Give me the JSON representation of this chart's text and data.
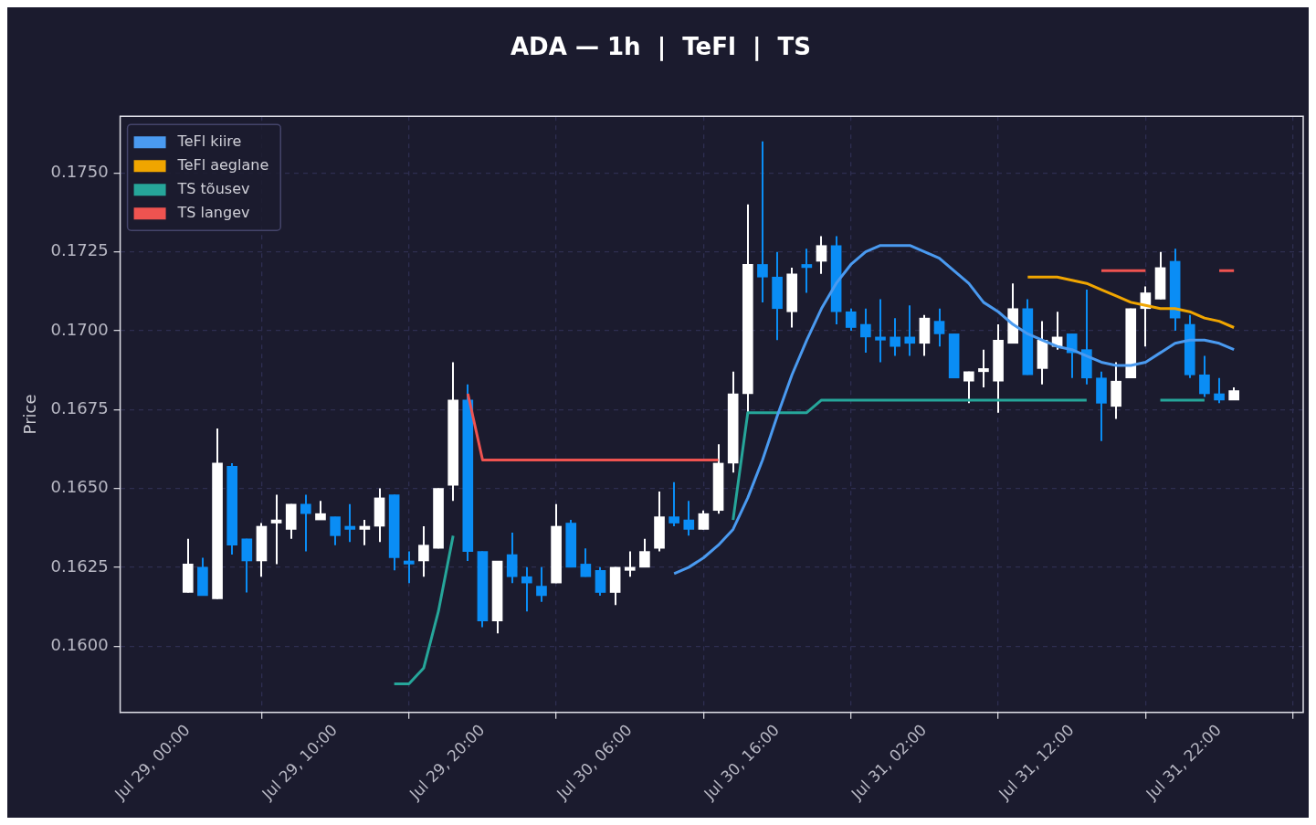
{
  "chart_data": {
    "type": "candlestick",
    "title": "ADA — 1h  |  TeFl  |  TS",
    "ylabel": "Price",
    "x": [
      "--07-29T00:00",
      "--07-29T01:00",
      "--07-29T02:00",
      "--07-29T03:00",
      "--07-29T04:00",
      "--07-29T05:00",
      "--07-29T06:00",
      "--07-29T07:00",
      "--07-29T08:00",
      "--07-29T09:00",
      "--07-29T10:00",
      "--07-29T11:00",
      "--07-29T12:00",
      "--07-29T13:00",
      "--07-29T14:00",
      "--07-29T15:00",
      "--07-29T16:00",
      "--07-29T17:00",
      "--07-29T18:00",
      "--07-29T19:00",
      "--07-29T20:00",
      "--07-29T21:00",
      "--07-29T22:00",
      "--07-29T23:00",
      "--07-30T00:00",
      "--07-30T01:00",
      "--07-30T02:00",
      "--07-30T03:00",
      "--07-30T04:00",
      "--07-30T05:00",
      "--07-30T06:00",
      "--07-30T07:00",
      "--07-30T08:00",
      "--07-30T09:00",
      "--07-30T10:00",
      "--07-30T11:00",
      "--07-30T12:00",
      "--07-30T13:00",
      "--07-30T14:00",
      "--07-30T15:00",
      "--07-30T16:00",
      "--07-30T17:00",
      "--07-30T18:00",
      "--07-30T19:00",
      "--07-30T20:00",
      "--07-30T21:00",
      "--07-30T22:00",
      "--07-30T23:00",
      "--07-31T00:00",
      "--07-31T01:00",
      "--07-31T02:00",
      "--07-31T03:00",
      "--07-31T04:00",
      "--07-31T05:00",
      "--07-31T06:00",
      "--07-31T07:00",
      "--07-31T08:00",
      "--07-31T09:00",
      "--07-31T10:00",
      "--07-31T11:00",
      "--07-31T12:00",
      "--07-31T13:00",
      "--07-31T14:00",
      "--07-31T15:00",
      "--07-31T16:00",
      "--07-31T17:00",
      "--07-31T18:00",
      "--07-31T19:00",
      "--07-31T20:00",
      "--07-31T21:00",
      "--07-31T22:00",
      "--07-31T23:00"
    ],
    "ohlc": [
      [
        0.1617,
        0.1634,
        0.1617,
        0.1626
      ],
      [
        0.1625,
        0.1628,
        0.1616,
        0.1616
      ],
      [
        0.1615,
        0.1669,
        0.1615,
        0.1658
      ],
      [
        0.1657,
        0.1658,
        0.1629,
        0.1632
      ],
      [
        0.1634,
        0.1634,
        0.1617,
        0.1627
      ],
      [
        0.1627,
        0.1639,
        0.1622,
        0.1638
      ],
      [
        0.1639,
        0.1648,
        0.1626,
        0.164
      ],
      [
        0.1637,
        0.1645,
        0.1634,
        0.1645
      ],
      [
        0.1645,
        0.1648,
        0.163,
        0.1642
      ],
      [
        0.164,
        0.1646,
        0.164,
        0.1642
      ],
      [
        0.1641,
        0.1641,
        0.1632,
        0.1635
      ],
      [
        0.1638,
        0.1645,
        0.1633,
        0.1637
      ],
      [
        0.1637,
        0.164,
        0.1632,
        0.1638
      ],
      [
        0.1638,
        0.165,
        0.1633,
        0.1647
      ],
      [
        0.1648,
        0.1648,
        0.1624,
        0.1628
      ],
      [
        0.1627,
        0.163,
        0.162,
        0.1626
      ],
      [
        0.1627,
        0.1638,
        0.1622,
        0.1632
      ],
      [
        0.1631,
        0.165,
        0.1631,
        0.165
      ],
      [
        0.1651,
        0.169,
        0.1646,
        0.1678
      ],
      [
        0.1678,
        0.1683,
        0.1627,
        0.163
      ],
      [
        0.163,
        0.163,
        0.1606,
        0.1608
      ],
      [
        0.1608,
        0.1627,
        0.1604,
        0.1627
      ],
      [
        0.1629,
        0.1636,
        0.162,
        0.1622
      ],
      [
        0.1622,
        0.1625,
        0.1611,
        0.162
      ],
      [
        0.1619,
        0.1625,
        0.1614,
        0.1616
      ],
      [
        0.162,
        0.1645,
        0.162,
        0.1638
      ],
      [
        0.1639,
        0.164,
        0.1625,
        0.1625
      ],
      [
        0.1626,
        0.1631,
        0.1622,
        0.1622
      ],
      [
        0.1624,
        0.1625,
        0.1616,
        0.1617
      ],
      [
        0.1617,
        0.1625,
        0.1613,
        0.1625
      ],
      [
        0.1624,
        0.163,
        0.1622,
        0.1625
      ],
      [
        0.1625,
        0.1634,
        0.1625,
        0.163
      ],
      [
        0.1631,
        0.1649,
        0.163,
        0.1641
      ],
      [
        0.1641,
        0.1652,
        0.1638,
        0.1639
      ],
      [
        0.164,
        0.1646,
        0.1635,
        0.1637
      ],
      [
        0.1637,
        0.1643,
        0.1637,
        0.1642
      ],
      [
        0.1643,
        0.1664,
        0.1642,
        0.1658
      ],
      [
        0.1658,
        0.1687,
        0.1655,
        0.168
      ],
      [
        0.168,
        0.174,
        0.1674,
        0.1721
      ],
      [
        0.1721,
        0.176,
        0.1709,
        0.1717
      ],
      [
        0.1717,
        0.1725,
        0.1697,
        0.1707
      ],
      [
        0.1706,
        0.172,
        0.1701,
        0.1718
      ],
      [
        0.1721,
        0.1726,
        0.1712,
        0.172
      ],
      [
        0.1722,
        0.173,
        0.1718,
        0.1727
      ],
      [
        0.1727,
        0.173,
        0.1702,
        0.1706
      ],
      [
        0.1706,
        0.1707,
        0.17,
        0.1701
      ],
      [
        0.1702,
        0.1707,
        0.1693,
        0.1698
      ],
      [
        0.1698,
        0.171,
        0.169,
        0.1697
      ],
      [
        0.1698,
        0.1704,
        0.1692,
        0.1695
      ],
      [
        0.1698,
        0.1708,
        0.1692,
        0.1696
      ],
      [
        0.1696,
        0.1705,
        0.1692,
        0.1704
      ],
      [
        0.1703,
        0.1707,
        0.1695,
        0.1699
      ],
      [
        0.1699,
        0.1699,
        0.1685,
        0.1685
      ],
      [
        0.1684,
        0.1687,
        0.1677,
        0.1687
      ],
      [
        0.1687,
        0.1694,
        0.1682,
        0.1688
      ],
      [
        0.1684,
        0.1702,
        0.1674,
        0.1697
      ],
      [
        0.1696,
        0.1715,
        0.1696,
        0.1707
      ],
      [
        0.1707,
        0.171,
        0.1686,
        0.1686
      ],
      [
        0.1688,
        0.1703,
        0.1683,
        0.1697
      ],
      [
        0.1695,
        0.1706,
        0.1694,
        0.1698
      ],
      [
        0.1699,
        0.1699,
        0.1685,
        0.1693
      ],
      [
        0.1694,
        0.1713,
        0.1683,
        0.1685
      ],
      [
        0.1685,
        0.1687,
        0.1665,
        0.1677
      ],
      [
        0.1676,
        0.169,
        0.1672,
        0.1684
      ],
      [
        0.1685,
        0.1707,
        0.1685,
        0.1707
      ],
      [
        0.1707,
        0.1714,
        0.1695,
        0.1712
      ],
      [
        0.171,
        0.1725,
        0.171,
        0.172
      ],
      [
        0.1722,
        0.1726,
        0.17,
        0.1704
      ],
      [
        0.1702,
        0.1705,
        0.1685,
        0.1686
      ],
      [
        0.1686,
        0.1692,
        0.1679,
        0.168
      ],
      [
        0.168,
        0.1685,
        0.1677,
        0.1678
      ],
      [
        0.1678,
        0.1682,
        0.1678,
        0.1681
      ]
    ],
    "colors": [
      "#ffffff",
      "#0a8df5",
      "#ffffff",
      "#0a8df5",
      "#0a8df5",
      "#ffffff",
      "#ffffff",
      "#ffffff",
      "#0a8df5",
      "#ffffff",
      "#0a8df5",
      "#0a8df5",
      "#ffffff",
      "#ffffff",
      "#0a8df5",
      "#0a8df5",
      "#ffffff",
      "#ffffff",
      "#ffffff",
      "#0a8df5",
      "#0a8df5",
      "#ffffff",
      "#0a8df5",
      "#0a8df5",
      "#0a8df5",
      "#ffffff",
      "#0a8df5",
      "#0a8df5",
      "#0a8df5",
      "#ffffff",
      "#ffffff",
      "#ffffff",
      "#ffffff",
      "#0a8df5",
      "#0a8df5",
      "#ffffff",
      "#ffffff",
      "#ffffff",
      "#ffffff",
      "#0a8df5",
      "#0a8df5",
      "#ffffff",
      "#0a8df5",
      "#ffffff",
      "#0a8df5",
      "#0a8df5",
      "#0a8df5",
      "#0a8df5",
      "#0a8df5",
      "#0a8df5",
      "#ffffff",
      "#0a8df5",
      "#0a8df5",
      "#ffffff",
      "#ffffff",
      "#ffffff",
      "#ffffff",
      "#0a8df5",
      "#ffffff",
      "#ffffff",
      "#0a8df5",
      "#0a8df5",
      "#0a8df5",
      "#ffffff",
      "#ffffff",
      "#ffffff",
      "#ffffff",
      "#0a8df5",
      "#0a8df5",
      "#0a8df5",
      "#0a8df5",
      "#ffffff"
    ],
    "series": [
      {
        "name": "TeFl kiire",
        "type": "line",
        "color": "#4a9af0",
        "values": [
          null,
          null,
          null,
          null,
          null,
          null,
          null,
          null,
          null,
          null,
          null,
          null,
          null,
          null,
          null,
          null,
          null,
          null,
          null,
          null,
          null,
          null,
          null,
          null,
          null,
          null,
          null,
          null,
          null,
          null,
          null,
          null,
          null,
          0.1623,
          0.1625,
          0.1628,
          0.1632,
          0.1637,
          0.1647,
          0.1659,
          0.1673,
          0.1686,
          0.1697,
          0.1707,
          0.1715,
          0.1721,
          0.1725,
          0.1727,
          0.1727,
          0.1727,
          0.1725,
          0.1723,
          0.1719,
          0.1715,
          0.1709,
          0.1706,
          0.1702,
          0.1699,
          0.1697,
          0.1695,
          0.1694,
          0.1692,
          0.169,
          0.1689,
          0.1689,
          0.169,
          0.1693,
          0.1696,
          0.1697,
          0.1697,
          0.1696,
          0.1694
        ]
      },
      {
        "name": "TeFl aeglane",
        "type": "line",
        "color": "#f0a500",
        "values": [
          null,
          null,
          null,
          null,
          null,
          null,
          null,
          null,
          null,
          null,
          null,
          null,
          null,
          null,
          null,
          null,
          null,
          null,
          null,
          null,
          null,
          null,
          null,
          null,
          null,
          null,
          null,
          null,
          null,
          null,
          null,
          null,
          null,
          null,
          null,
          null,
          null,
          null,
          null,
          null,
          null,
          null,
          null,
          null,
          null,
          null,
          null,
          null,
          null,
          null,
          null,
          null,
          null,
          null,
          null,
          null,
          null,
          0.1717,
          0.1717,
          0.1717,
          0.1716,
          0.1715,
          0.1713,
          0.1711,
          0.1709,
          0.1708,
          0.1707,
          0.1707,
          0.1706,
          0.1704,
          0.1703,
          0.1701
        ]
      },
      {
        "name": "TS tõusev",
        "type": "line",
        "color": "#26a69a",
        "values": [
          null,
          null,
          null,
          null,
          null,
          null,
          null,
          null,
          null,
          null,
          null,
          null,
          null,
          null,
          0.1588,
          0.1588,
          0.1593,
          0.1611,
          0.1635,
          null,
          null,
          null,
          null,
          null,
          null,
          null,
          null,
          null,
          null,
          null,
          null,
          null,
          null,
          null,
          null,
          null,
          null,
          0.164,
          0.1674,
          0.1674,
          0.1674,
          0.1674,
          0.1674,
          0.1678,
          0.1678,
          0.1678,
          0.1678,
          0.1678,
          0.1678,
          0.1678,
          0.1678,
          0.1678,
          0.1678,
          0.1678,
          0.1678,
          0.1678,
          0.1678,
          0.1678,
          0.1678,
          0.1678,
          0.1678,
          0.1678,
          null,
          null,
          null,
          null,
          0.1678,
          0.1678,
          0.1678,
          0.1678,
          null,
          null
        ]
      },
      {
        "name": "TS langev",
        "type": "line",
        "color": "#ef5350",
        "values": [
          null,
          null,
          null,
          null,
          null,
          null,
          null,
          null,
          null,
          null,
          null,
          null,
          null,
          null,
          null,
          null,
          null,
          null,
          null,
          0.168,
          0.1659,
          0.1659,
          0.1659,
          0.1659,
          0.1659,
          0.1659,
          0.1659,
          0.1659,
          0.1659,
          0.1659,
          0.1659,
          0.1659,
          0.1659,
          0.1659,
          0.1659,
          0.1659,
          0.1659,
          null,
          null,
          null,
          null,
          null,
          null,
          null,
          null,
          null,
          null,
          null,
          null,
          null,
          null,
          null,
          null,
          null,
          null,
          null,
          null,
          null,
          null,
          null,
          null,
          null,
          0.1719,
          0.1719,
          0.1719,
          0.1719,
          null,
          null,
          null,
          null,
          0.1719,
          0.1719
        ]
      }
    ],
    "xlim": [
      "--07-28T19:24",
      "--08-01T03:42"
    ],
    "xticks": [
      {
        "value": "--07-29T00:00",
        "label": "Jul 29, 00:00"
      },
      {
        "value": "--07-29T10:00",
        "label": "Jul 29, 10:00"
      },
      {
        "value": "--07-29T20:00",
        "label": "Jul 29, 20:00"
      },
      {
        "value": "--07-30T06:00",
        "label": "Jul 30, 06:00"
      },
      {
        "value": "--07-30T16:00",
        "label": "Jul 30, 16:00"
      },
      {
        "value": "--07-31T02:00",
        "label": "Jul 31, 02:00"
      },
      {
        "value": "--07-31T12:00",
        "label": "Jul 31, 12:00"
      },
      {
        "value": "--07-31T22:00",
        "label": "Jul 31, 22:00"
      }
    ],
    "ylim": [
      0.1579,
      0.1768
    ],
    "yticks": [
      {
        "value": 0.16,
        "label": "0.1600"
      },
      {
        "value": 0.1625,
        "label": "0.1625"
      },
      {
        "value": 0.165,
        "label": "0.1650"
      },
      {
        "value": 0.1675,
        "label": "0.1675"
      },
      {
        "value": 0.17,
        "label": "0.1700"
      },
      {
        "value": 0.1725,
        "label": "0.1725"
      },
      {
        "value": 0.175,
        "label": "0.1750"
      }
    ],
    "grid": true,
    "legend": "top left",
    "marker": "none",
    "line_style": "solid"
  }
}
